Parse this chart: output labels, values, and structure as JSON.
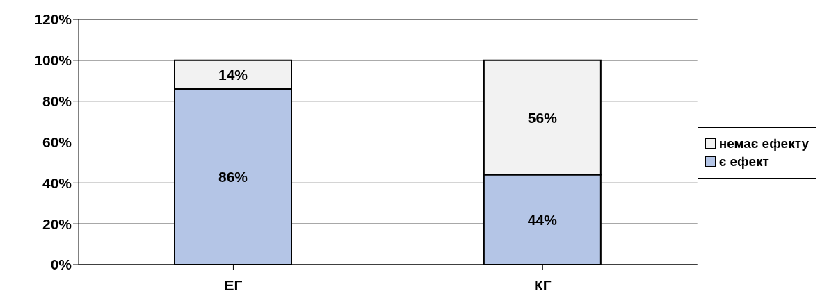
{
  "chart_data": {
    "type": "bar",
    "stacked": true,
    "categories": [
      "ЕГ",
      "КГ"
    ],
    "series": [
      {
        "name": "є ефект",
        "color": "#b4c5e6",
        "values": [
          86,
          44
        ],
        "value_labels": [
          "86%",
          "44%"
        ]
      },
      {
        "name": "немає ефекту",
        "color": "#f2f2f2",
        "values": [
          14,
          56
        ],
        "value_labels": [
          "14%",
          "56%"
        ]
      }
    ],
    "ylim": [
      0,
      120
    ],
    "yticks": [
      {
        "value": 0,
        "label": "0%"
      },
      {
        "value": 20,
        "label": "20%"
      },
      {
        "value": 40,
        "label": "40%"
      },
      {
        "value": 60,
        "label": "60%"
      },
      {
        "value": 80,
        "label": "80%"
      },
      {
        "value": 100,
        "label": "100%"
      },
      {
        "value": 120,
        "label": "120%"
      }
    ],
    "grid": "y",
    "legend": "right"
  }
}
